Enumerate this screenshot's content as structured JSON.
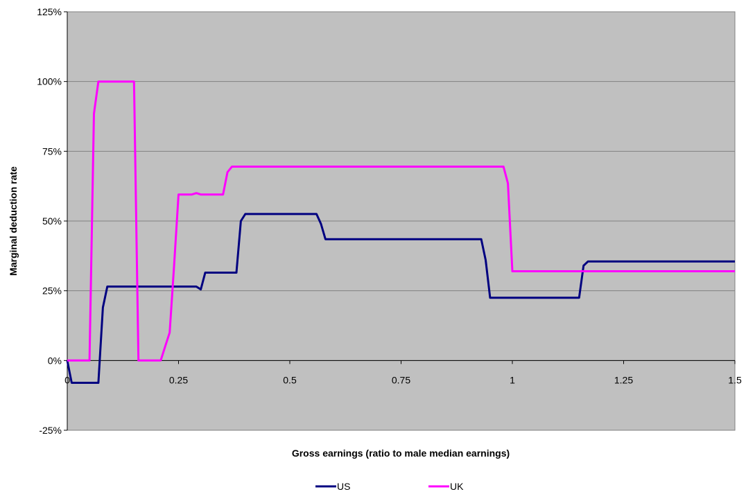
{
  "chart_data": {
    "type": "line",
    "title": "",
    "xlabel": "Gross earnings (ratio to male median earnings)",
    "ylabel": "Marginal deduction rate",
    "xlim": [
      0,
      1.5
    ],
    "ylim": [
      -25,
      125
    ],
    "x_ticks": [
      0,
      0.25,
      0.5,
      0.75,
      1,
      1.25,
      1.5
    ],
    "x_tick_labels": [
      "0",
      "0.25",
      "0.5",
      "0.75",
      "1",
      "1.25",
      "1.5"
    ],
    "y_ticks": [
      -25,
      0,
      25,
      50,
      75,
      100,
      125
    ],
    "y_tick_labels": [
      "-25%",
      "0%",
      "25%",
      "50%",
      "75%",
      "100%",
      "125%"
    ],
    "grid": "horizontal",
    "plot_background": "#c0c0c0",
    "legend_position": "bottom",
    "series": [
      {
        "name": "US",
        "color": "#000080",
        "points": [
          [
            0,
            0
          ],
          [
            0.01,
            -8
          ],
          [
            0.07,
            -8
          ],
          [
            0.08,
            19
          ],
          [
            0.09,
            26.5
          ],
          [
            0.29,
            26.5
          ],
          [
            0.3,
            25.5
          ],
          [
            0.31,
            31.5
          ],
          [
            0.38,
            31.5
          ],
          [
            0.39,
            50
          ],
          [
            0.4,
            52.5
          ],
          [
            0.56,
            52.5
          ],
          [
            0.57,
            49
          ],
          [
            0.58,
            43.5
          ],
          [
            0.93,
            43.5
          ],
          [
            0.94,
            36
          ],
          [
            0.95,
            22.5
          ],
          [
            1.15,
            22.5
          ],
          [
            1.16,
            34
          ],
          [
            1.17,
            35.5
          ],
          [
            1.5,
            35.5
          ]
        ]
      },
      {
        "name": "UK",
        "color": "#ff00ff",
        "points": [
          [
            0,
            0
          ],
          [
            0.05,
            0
          ],
          [
            0.06,
            88.5
          ],
          [
            0.07,
            100
          ],
          [
            0.15,
            100
          ],
          [
            0.16,
            0
          ],
          [
            0.21,
            0
          ],
          [
            0.22,
            5
          ],
          [
            0.23,
            10
          ],
          [
            0.24,
            34
          ],
          [
            0.25,
            59.5
          ],
          [
            0.28,
            59.5
          ],
          [
            0.29,
            60
          ],
          [
            0.3,
            59.5
          ],
          [
            0.35,
            59.5
          ],
          [
            0.36,
            67.5
          ],
          [
            0.37,
            69.5
          ],
          [
            0.98,
            69.5
          ],
          [
            0.99,
            63.5
          ],
          [
            1,
            32
          ],
          [
            1.5,
            32
          ]
        ]
      }
    ]
  }
}
